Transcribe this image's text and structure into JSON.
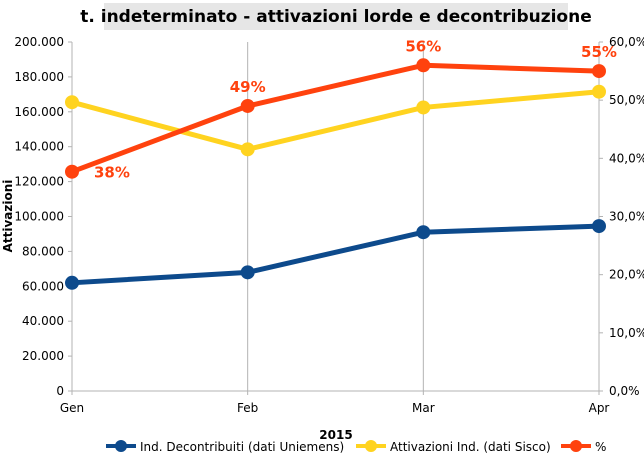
{
  "chart_data": {
    "type": "line",
    "title": "t. indeterminato - attivazioni lorde e decontribuzione",
    "categories": [
      "Gen",
      "Feb",
      "Mar",
      "Apr"
    ],
    "xlabel": "2015",
    "ylabel": "Attivazioni",
    "ylim": [
      0,
      200000
    ],
    "y_ticks": [
      "0",
      "20.000",
      "40.000",
      "60.000",
      "80.000",
      "100.000",
      "120.000",
      "140.000",
      "160.000",
      "180.000",
      "200.000"
    ],
    "y2lim": [
      0,
      0.6
    ],
    "y2_ticks": [
      "0,0%",
      "10,0%",
      "20,0%",
      "30,0%",
      "40,0%",
      "50,0%",
      "60,0%"
    ],
    "grid": "vertical",
    "legend": "bottom",
    "series": [
      {
        "name": "Ind. Decontribuiti (dati Uniemens)",
        "axis": "left",
        "color": "#0d4a8c",
        "values": [
          62000,
          68000,
          91000,
          94500
        ]
      },
      {
        "name": "Attivazioni Ind. (dati Sisco)",
        "axis": "left",
        "color": "#ffd320",
        "values": [
          165500,
          138500,
          162500,
          171500
        ]
      },
      {
        "name": "%",
        "axis": "right",
        "color": "#ff420e",
        "values": [
          0.377,
          0.49,
          0.56,
          0.55
        ],
        "labels": [
          "38%",
          "49%",
          "56%",
          "55%"
        ]
      }
    ]
  }
}
